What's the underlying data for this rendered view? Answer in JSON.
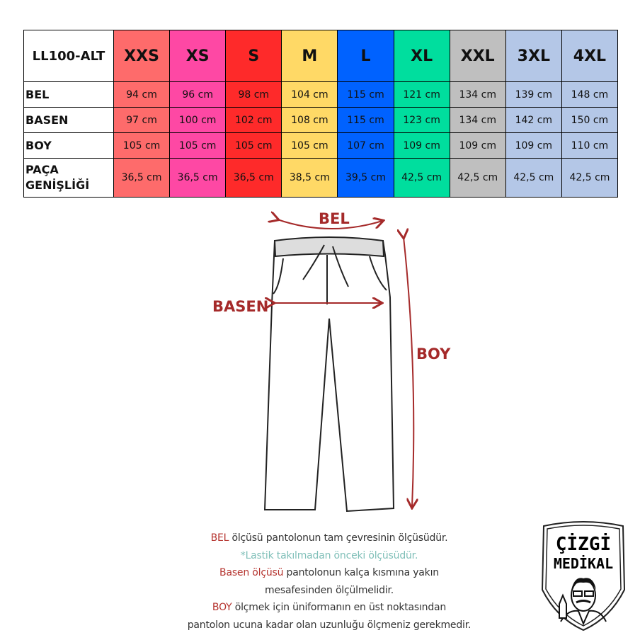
{
  "table": {
    "code": "LL100-ALT",
    "sizes": [
      {
        "label": "XXS",
        "color": "#fe6b6b"
      },
      {
        "label": "XS",
        "color": "#fe48a4"
      },
      {
        "label": "S",
        "color": "#fe2a2a"
      },
      {
        "label": "M",
        "color": "#ffd966"
      },
      {
        "label": "L",
        "color": "#0062ff"
      },
      {
        "label": "XL",
        "color": "#00de9e"
      },
      {
        "label": "XXL",
        "color": "#bfbfbf"
      },
      {
        "label": "3XL",
        "color": "#b4c7e7"
      },
      {
        "label": "4XL",
        "color": "#b4c7e7"
      }
    ],
    "rows": [
      {
        "label": "BEL",
        "values": [
          "94 cm",
          "96 cm",
          "98 cm",
          "104 cm",
          "115 cm",
          "121 cm",
          "134 cm",
          "139 cm",
          "148 cm"
        ]
      },
      {
        "label": "BASEN",
        "values": [
          "97 cm",
          "100 cm",
          "102 cm",
          "108 cm",
          "115 cm",
          "123 cm",
          "134 cm",
          "142 cm",
          "150 cm"
        ]
      },
      {
        "label": "BOY",
        "values": [
          "105 cm",
          "105 cm",
          "105 cm",
          "105 cm",
          "107 cm",
          "109 cm",
          "109 cm",
          "109 cm",
          "110 cm"
        ]
      },
      {
        "label_lines": [
          "PAÇA",
          "GENİŞLİĞİ"
        ],
        "values": [
          "36,5 cm",
          "36,5 cm",
          "36,5 cm",
          "38,5 cm",
          "39,5 cm",
          "42,5 cm",
          "42,5 cm",
          "42,5 cm",
          "42,5 cm"
        ]
      }
    ]
  },
  "diagram": {
    "bel": "BEL",
    "basen": "BASEN",
    "boy": "BOY",
    "accent": "#a52a2a"
  },
  "notes": {
    "l1_key": "BEL",
    "l1_rest": " ölçüsü pantolonun tam çevresinin ölçüsüdür.",
    "l2": "*Lastik takılmadan önceki ölçüsüdür.",
    "l3_key": "Basen ölçüsü",
    "l3_rest": " pantolonun kalça kısmına yakın",
    "l4": "mesafesinden ölçülmelidir.",
    "l5_key": "BOY",
    "l5_rest": " ölçmek için üniformanın en üst noktasından",
    "l6": "pantolon ucuna kadar olan uzunluğu ölçmeniz gerekmedir."
  },
  "logo": {
    "line1": "ÇİZGİ",
    "line2": "MEDİKAL"
  }
}
